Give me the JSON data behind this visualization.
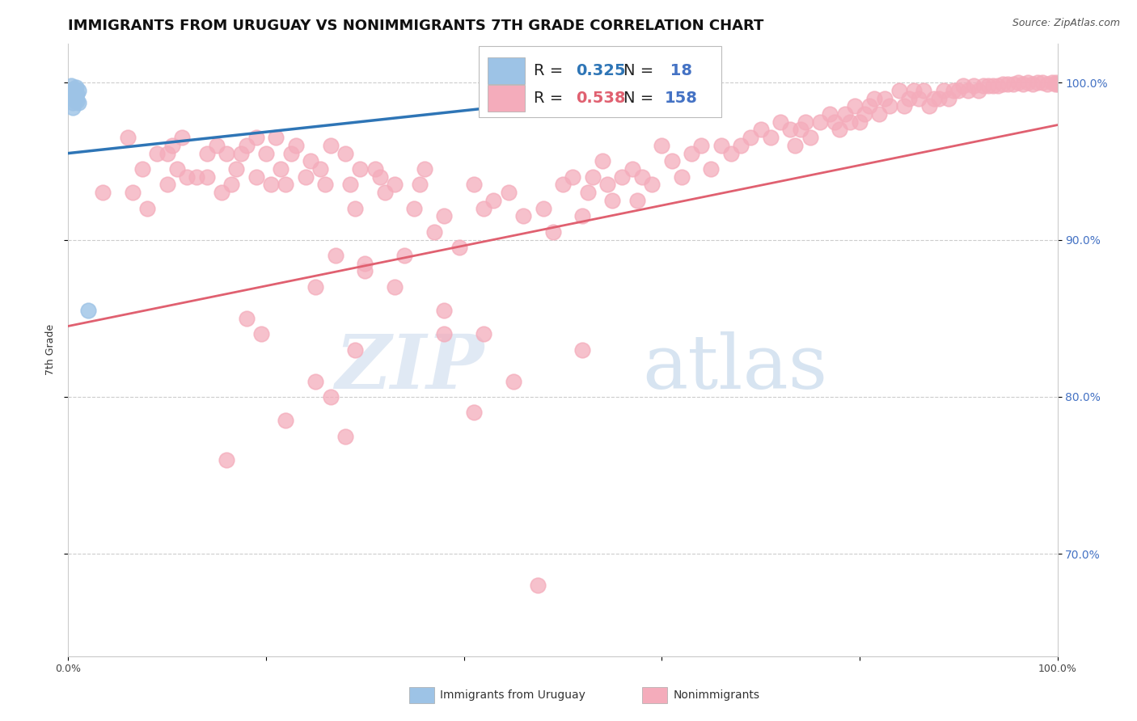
{
  "title": "IMMIGRANTS FROM URUGUAY VS NONIMMIGRANTS 7TH GRADE CORRELATION CHART",
  "source": "Source: ZipAtlas.com",
  "ylabel": "7th Grade",
  "xlim": [
    0.0,
    1.0
  ],
  "ylim": [
    0.635,
    1.025
  ],
  "yticks": [
    0.7,
    0.8,
    0.9,
    1.0
  ],
  "ytick_labels": [
    "70.0%",
    "80.0%",
    "90.0%",
    "100.0%"
  ],
  "legend_r_blue": "0.325",
  "legend_n_blue": "18",
  "legend_r_pink": "0.538",
  "legend_n_pink": "158",
  "blue_color": "#9DC3E6",
  "pink_color": "#F4ACBB",
  "blue_line_color": "#2E75B6",
  "pink_line_color": "#E06070",
  "watermark_zip": "ZIP",
  "watermark_atlas": "atlas",
  "title_fontsize": 13,
  "axis_label_fontsize": 9,
  "tick_fontsize": 9,
  "legend_fontsize": 14,
  "blue_x": [
    0.003,
    0.003,
    0.005,
    0.005,
    0.005,
    0.005,
    0.006,
    0.006,
    0.007,
    0.007,
    0.008,
    0.008,
    0.009,
    0.009,
    0.01,
    0.01,
    0.02,
    0.55
  ],
  "blue_y": [
    0.998,
    0.995,
    0.993,
    0.99,
    0.987,
    0.984,
    0.996,
    0.992,
    0.994,
    0.989,
    0.997,
    0.991,
    0.993,
    0.988,
    0.995,
    0.987,
    0.855,
    0.993
  ],
  "pink_x": [
    0.035,
    0.06,
    0.065,
    0.075,
    0.08,
    0.09,
    0.1,
    0.1,
    0.105,
    0.11,
    0.115,
    0.12,
    0.13,
    0.14,
    0.14,
    0.15,
    0.155,
    0.16,
    0.165,
    0.17,
    0.175,
    0.18,
    0.19,
    0.19,
    0.2,
    0.205,
    0.21,
    0.215,
    0.22,
    0.225,
    0.23,
    0.24,
    0.245,
    0.25,
    0.255,
    0.26,
    0.265,
    0.27,
    0.28,
    0.285,
    0.29,
    0.295,
    0.3,
    0.31,
    0.315,
    0.32,
    0.33,
    0.34,
    0.35,
    0.355,
    0.36,
    0.37,
    0.38,
    0.395,
    0.41,
    0.42,
    0.43,
    0.445,
    0.46,
    0.48,
    0.49,
    0.5,
    0.51,
    0.52,
    0.525,
    0.53,
    0.54,
    0.545,
    0.55,
    0.56,
    0.57,
    0.575,
    0.58,
    0.59,
    0.6,
    0.61,
    0.62,
    0.63,
    0.64,
    0.65,
    0.66,
    0.67,
    0.68,
    0.69,
    0.7,
    0.71,
    0.72,
    0.73,
    0.735,
    0.74,
    0.745,
    0.75,
    0.76,
    0.77,
    0.775,
    0.78,
    0.785,
    0.79,
    0.795,
    0.8,
    0.805,
    0.81,
    0.815,
    0.82,
    0.825,
    0.83,
    0.84,
    0.845,
    0.85,
    0.855,
    0.86,
    0.865,
    0.87,
    0.875,
    0.88,
    0.885,
    0.89,
    0.895,
    0.9,
    0.905,
    0.91,
    0.915,
    0.92,
    0.925,
    0.93,
    0.935,
    0.94,
    0.945,
    0.95,
    0.955,
    0.96,
    0.965,
    0.97,
    0.975,
    0.98,
    0.985,
    0.99,
    0.995,
    0.998,
    0.999,
    1.0,
    0.25,
    0.3,
    0.18,
    0.22,
    0.265,
    0.28,
    0.41,
    0.45,
    0.52,
    0.38,
    0.33,
    0.29,
    0.16,
    0.195,
    0.42,
    0.38,
    0.475
  ],
  "pink_y": [
    0.93,
    0.965,
    0.93,
    0.945,
    0.92,
    0.955,
    0.955,
    0.935,
    0.96,
    0.945,
    0.965,
    0.94,
    0.94,
    0.955,
    0.94,
    0.96,
    0.93,
    0.955,
    0.935,
    0.945,
    0.955,
    0.96,
    0.965,
    0.94,
    0.955,
    0.935,
    0.965,
    0.945,
    0.935,
    0.955,
    0.96,
    0.94,
    0.95,
    0.87,
    0.945,
    0.935,
    0.96,
    0.89,
    0.955,
    0.935,
    0.92,
    0.945,
    0.885,
    0.945,
    0.94,
    0.93,
    0.935,
    0.89,
    0.92,
    0.935,
    0.945,
    0.905,
    0.915,
    0.895,
    0.935,
    0.92,
    0.925,
    0.93,
    0.915,
    0.92,
    0.905,
    0.935,
    0.94,
    0.915,
    0.93,
    0.94,
    0.95,
    0.935,
    0.925,
    0.94,
    0.945,
    0.925,
    0.94,
    0.935,
    0.96,
    0.95,
    0.94,
    0.955,
    0.96,
    0.945,
    0.96,
    0.955,
    0.96,
    0.965,
    0.97,
    0.965,
    0.975,
    0.97,
    0.96,
    0.97,
    0.975,
    0.965,
    0.975,
    0.98,
    0.975,
    0.97,
    0.98,
    0.975,
    0.985,
    0.975,
    0.98,
    0.985,
    0.99,
    0.98,
    0.99,
    0.985,
    0.995,
    0.985,
    0.99,
    0.995,
    0.99,
    0.995,
    0.985,
    0.99,
    0.99,
    0.995,
    0.99,
    0.995,
    0.995,
    0.998,
    0.995,
    0.998,
    0.995,
    0.998,
    0.998,
    0.998,
    0.998,
    0.999,
    0.999,
    0.999,
    1.0,
    0.999,
    1.0,
    0.999,
    1.0,
    1.0,
    0.999,
    1.0,
    0.999,
    1.0,
    0.999,
    0.81,
    0.88,
    0.85,
    0.785,
    0.8,
    0.775,
    0.79,
    0.81,
    0.83,
    0.84,
    0.87,
    0.83,
    0.76,
    0.84,
    0.84,
    0.855,
    0.68
  ],
  "blue_line_x0": 0.0,
  "blue_line_x1": 0.56,
  "blue_line_y0": 0.955,
  "blue_line_y1": 0.993,
  "pink_line_x0": 0.0,
  "pink_line_x1": 1.0,
  "pink_line_y0": 0.845,
  "pink_line_y1": 0.973
}
